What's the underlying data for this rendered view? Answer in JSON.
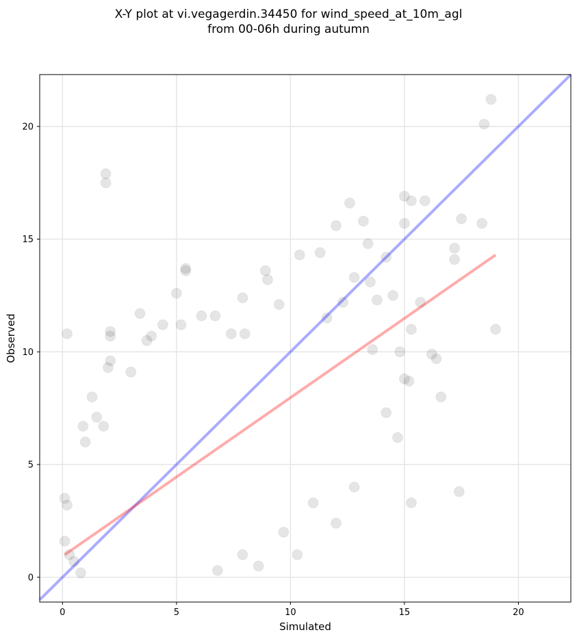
{
  "chart_data": {
    "type": "scatter",
    "title": "X-Y plot at vi.vegagerdin.34450 for wind_speed_at_10m_agl",
    "subtitle": "from 00-06h during autumn",
    "xlabel": "Simulated",
    "ylabel": "Observed",
    "xlim": [
      -1.0,
      22.3
    ],
    "ylim": [
      -1.1,
      22.3
    ],
    "xticks": [
      0,
      5,
      10,
      15,
      20
    ],
    "yticks": [
      0,
      5,
      10,
      15,
      20
    ],
    "grid": true,
    "point_color": "#000000",
    "point_alpha": 0.1,
    "identity_line": {
      "color": "#0000ff",
      "from": [
        -1.0,
        -1.0
      ],
      "to": [
        22.3,
        22.3
      ]
    },
    "fit_line": {
      "color": "#ff0000",
      "from": [
        0.1,
        1.0
      ],
      "to": [
        19.0,
        14.3
      ]
    },
    "points": [
      [
        0.2,
        10.8
      ],
      [
        1.9,
        17.9
      ],
      [
        1.9,
        17.5
      ],
      [
        18.8,
        21.2
      ],
      [
        18.5,
        20.1
      ],
      [
        18.4,
        15.7
      ],
      [
        17.5,
        15.9
      ],
      [
        17.2,
        14.6
      ],
      [
        17.2,
        14.1
      ],
      [
        19.0,
        11.0
      ],
      [
        16.6,
        8.0
      ],
      [
        17.4,
        3.8
      ],
      [
        15.3,
        3.3
      ],
      [
        12.0,
        2.4
      ],
      [
        10.3,
        1.0
      ],
      [
        15.0,
        16.9
      ],
      [
        15.3,
        16.7
      ],
      [
        15.9,
        16.7
      ],
      [
        12.6,
        16.6
      ],
      [
        15.0,
        15.7
      ],
      [
        13.2,
        15.8
      ],
      [
        12.0,
        15.6
      ],
      [
        5.4,
        13.6
      ],
      [
        5.4,
        13.7
      ],
      [
        5.0,
        12.6
      ],
      [
        3.4,
        11.7
      ],
      [
        2.1,
        10.9
      ],
      [
        2.1,
        10.7
      ],
      [
        3.0,
        9.1
      ],
      [
        2.0,
        9.3
      ],
      [
        2.1,
        9.6
      ],
      [
        1.3,
        8.0
      ],
      [
        1.5,
        7.1
      ],
      [
        1.8,
        6.7
      ],
      [
        0.9,
        6.7
      ],
      [
        1.0,
        6.0
      ],
      [
        14.7,
        6.2
      ],
      [
        14.2,
        7.3
      ],
      [
        12.8,
        4.0
      ],
      [
        11.0,
        3.3
      ],
      [
        9.7,
        2.0
      ],
      [
        8.6,
        0.5
      ],
      [
        6.8,
        0.3
      ],
      [
        7.9,
        1.0
      ],
      [
        0.1,
        3.5
      ],
      [
        0.2,
        3.2
      ],
      [
        0.1,
        1.6
      ],
      [
        0.3,
        1.0
      ],
      [
        0.5,
        0.7
      ],
      [
        0.8,
        0.2
      ],
      [
        14.5,
        12.5
      ],
      [
        13.8,
        12.3
      ],
      [
        15.3,
        11.0
      ],
      [
        15.7,
        12.2
      ],
      [
        16.2,
        9.9
      ],
      [
        16.4,
        9.7
      ],
      [
        15.2,
        8.7
      ],
      [
        15.0,
        8.8
      ],
      [
        14.8,
        10.0
      ],
      [
        13.6,
        10.1
      ],
      [
        11.3,
        14.4
      ],
      [
        10.4,
        14.3
      ],
      [
        9.5,
        12.1
      ],
      [
        8.9,
        13.6
      ],
      [
        9.0,
        13.2
      ],
      [
        7.9,
        12.4
      ],
      [
        5.2,
        11.2
      ],
      [
        4.4,
        11.2
      ],
      [
        3.9,
        10.7
      ],
      [
        3.7,
        10.5
      ],
      [
        6.7,
        11.6
      ],
      [
        6.1,
        11.6
      ],
      [
        7.4,
        10.8
      ],
      [
        8.0,
        10.8
      ],
      [
        12.8,
        13.3
      ],
      [
        13.4,
        14.8
      ],
      [
        13.5,
        13.1
      ],
      [
        14.2,
        14.2
      ],
      [
        12.3,
        12.2
      ],
      [
        11.6,
        11.5
      ]
    ]
  }
}
